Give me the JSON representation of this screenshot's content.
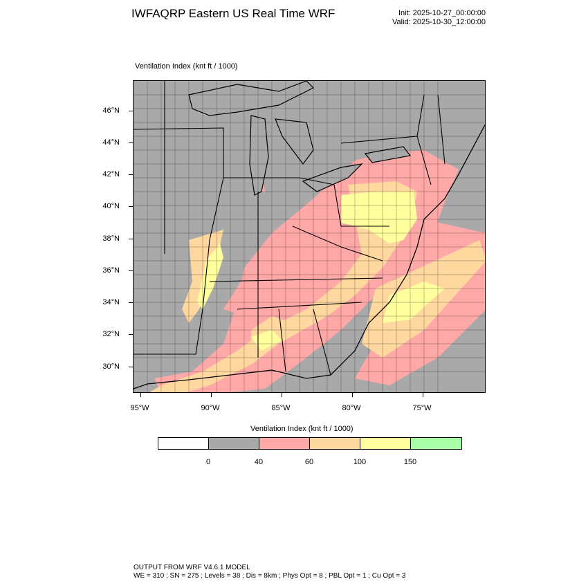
{
  "header": {
    "title": "IWFAQRP Eastern US Real Time WRF",
    "init": "Init: 2025-10-27_00:00:00",
    "valid": "Valid: 2025-10-30_12:00:00"
  },
  "map": {
    "field_label": "Ventilation Index   (knt ft / 1000)",
    "lat_labels": [
      "46°N",
      "44°N",
      "42°N",
      "40°N",
      "38°N",
      "36°N",
      "34°N",
      "32°N",
      "30°N"
    ],
    "lon_labels": [
      "95°W",
      "90°W",
      "85°W",
      "80°W",
      "75°W"
    ],
    "colors": {
      "background": "#a9a9a9",
      "water": "#a9a9a9",
      "level_40_60": "#ffa8a8",
      "level_60_100": "#ffd8a0",
      "level_100_150": "#ffff9e",
      "lines": "#000000"
    }
  },
  "colorbar": {
    "title": "Ventilation Index  (knt ft / 1000)",
    "colors": [
      "#ffffff",
      "#a9a9a9",
      "#ffa8a8",
      "#ffd8a0",
      "#ffff9e",
      "#a8ffa8"
    ],
    "labels": [
      "0",
      "40",
      "60",
      "100",
      "150"
    ]
  },
  "footer": {
    "line1": "OUTPUT FROM WRF V4.6.1 MODEL",
    "line2": "WE = 310 ; SN = 275 ; Levels = 38 ; Dis = 8km ; Phys Opt = 8 ; PBL Opt = 1 ; Cu Opt = 3"
  }
}
